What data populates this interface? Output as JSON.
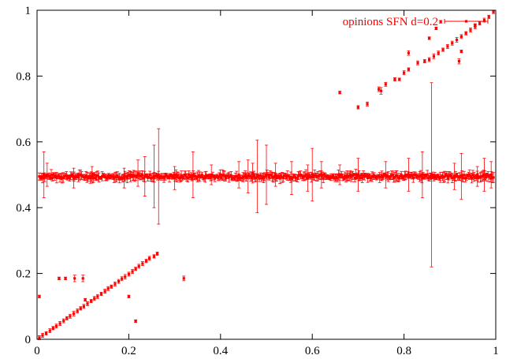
{
  "chart_data": {
    "type": "scatter",
    "title": "",
    "xlabel": "",
    "ylabel": "",
    "xlim": [
      0,
      1
    ],
    "ylim": [
      0,
      1
    ],
    "x_ticks": [
      "0",
      "0.2",
      "0.4",
      "0.6",
      "0.8",
      "1"
    ],
    "y_ticks": [
      "0",
      "0.2",
      "0.4",
      "0.6",
      "0.8",
      "1"
    ],
    "grid": false,
    "legend_position": "top-right",
    "colors": {
      "series": "#ff0000",
      "axes": "#000000",
      "background": "#ffffff"
    },
    "series": [
      {
        "name": "opinions SFN d=0.2",
        "marker": "point-with-errorbars",
        "lower_branch": [
          [
            0.005,
            0.005,
            0.006
          ],
          [
            0.012,
            0.012,
            0.006
          ],
          [
            0.02,
            0.018,
            0.005
          ],
          [
            0.028,
            0.026,
            0.006
          ],
          [
            0.035,
            0.034,
            0.005
          ],
          [
            0.042,
            0.04,
            0.006
          ],
          [
            0.05,
            0.048,
            0.006
          ],
          [
            0.058,
            0.056,
            0.006
          ],
          [
            0.065,
            0.064,
            0.005
          ],
          [
            0.072,
            0.07,
            0.006
          ],
          [
            0.08,
            0.078,
            0.007
          ],
          [
            0.088,
            0.086,
            0.006
          ],
          [
            0.095,
            0.094,
            0.005
          ],
          [
            0.102,
            0.1,
            0.006
          ],
          [
            0.11,
            0.108,
            0.006
          ],
          [
            0.118,
            0.116,
            0.005
          ],
          [
            0.125,
            0.124,
            0.006
          ],
          [
            0.132,
            0.13,
            0.006
          ],
          [
            0.14,
            0.138,
            0.005
          ],
          [
            0.148,
            0.146,
            0.006
          ],
          [
            0.155,
            0.154,
            0.006
          ],
          [
            0.162,
            0.16,
            0.005
          ],
          [
            0.17,
            0.168,
            0.006
          ],
          [
            0.178,
            0.176,
            0.006
          ],
          [
            0.185,
            0.184,
            0.006
          ],
          [
            0.192,
            0.19,
            0.007
          ],
          [
            0.2,
            0.198,
            0.006
          ],
          [
            0.208,
            0.206,
            0.006
          ],
          [
            0.215,
            0.214,
            0.005
          ],
          [
            0.222,
            0.222,
            0.006
          ],
          [
            0.23,
            0.23,
            0.006
          ],
          [
            0.238,
            0.238,
            0.005
          ],
          [
            0.245,
            0.246,
            0.006
          ],
          [
            0.255,
            0.252,
            0.005
          ],
          [
            0.262,
            0.26,
            0.005
          ]
        ],
        "lower_outliers": [
          [
            0.005,
            0.13,
            0.004
          ],
          [
            0.048,
            0.185,
            0.004
          ],
          [
            0.062,
            0.185,
            0.004
          ],
          [
            0.082,
            0.185,
            0.01
          ],
          [
            0.1,
            0.185,
            0.01
          ],
          [
            0.2,
            0.13,
            0.004
          ],
          [
            0.215,
            0.055,
            0.004
          ],
          [
            0.32,
            0.185,
            0.007
          ],
          [
            0.105,
            0.12,
            0.004
          ]
        ],
        "upper_branch": [
          [
            0.7,
            0.705,
            0.005
          ],
          [
            0.72,
            0.715,
            0.006
          ],
          [
            0.745,
            0.76,
            0.007
          ],
          [
            0.76,
            0.775,
            0.006
          ],
          [
            0.78,
            0.79,
            0.005
          ],
          [
            0.8,
            0.81,
            0.006
          ],
          [
            0.81,
            0.82,
            0.005
          ],
          [
            0.83,
            0.84,
            0.006
          ],
          [
            0.845,
            0.845,
            0.005
          ],
          [
            0.855,
            0.85,
            0.006
          ],
          [
            0.865,
            0.86,
            0.007
          ],
          [
            0.875,
            0.87,
            0.006
          ],
          [
            0.885,
            0.88,
            0.005
          ],
          [
            0.895,
            0.89,
            0.006
          ],
          [
            0.905,
            0.9,
            0.006
          ],
          [
            0.915,
            0.91,
            0.007
          ],
          [
            0.925,
            0.92,
            0.006
          ],
          [
            0.935,
            0.93,
            0.005
          ],
          [
            0.945,
            0.94,
            0.006
          ],
          [
            0.955,
            0.95,
            0.006
          ],
          [
            0.965,
            0.96,
            0.005
          ],
          [
            0.975,
            0.97,
            0.006
          ],
          [
            0.985,
            0.98,
            0.005
          ],
          [
            0.995,
            0.995,
            0.005
          ]
        ],
        "upper_outliers": [
          [
            0.66,
            0.75,
            0.004
          ],
          [
            0.75,
            0.755,
            0.01
          ],
          [
            0.79,
            0.79,
            0.004
          ],
          [
            0.81,
            0.87,
            0.007
          ],
          [
            0.855,
            0.915,
            0.004
          ],
          [
            0.87,
            0.945,
            0.004
          ],
          [
            0.88,
            0.965,
            0.004
          ],
          [
            0.92,
            0.845,
            0.008
          ],
          [
            0.925,
            0.875,
            0.004
          ],
          [
            0.955,
            0.955,
            0.004
          ]
        ],
        "middle_band": {
          "x_range": [
            0.005,
            0.995
          ],
          "y_center": 0.495,
          "large_errorbars": [
            [
              0.015,
              0.5,
              0.07
            ],
            [
              0.022,
              0.5,
              0.035
            ],
            [
              0.08,
              0.49,
              0.03
            ],
            [
              0.12,
              0.5,
              0.025
            ],
            [
              0.19,
              0.49,
              0.03
            ],
            [
              0.22,
              0.505,
              0.04
            ],
            [
              0.235,
              0.495,
              0.06
            ],
            [
              0.255,
              0.495,
              0.095
            ],
            [
              0.265,
              0.495,
              0.145
            ],
            [
              0.3,
              0.49,
              0.035
            ],
            [
              0.34,
              0.5,
              0.07
            ],
            [
              0.38,
              0.5,
              0.03
            ],
            [
              0.44,
              0.5,
              0.04
            ],
            [
              0.46,
              0.495,
              0.05
            ],
            [
              0.47,
              0.505,
              0.03
            ],
            [
              0.48,
              0.495,
              0.11
            ],
            [
              0.5,
              0.5,
              0.09
            ],
            [
              0.52,
              0.5,
              0.035
            ],
            [
              0.555,
              0.49,
              0.05
            ],
            [
              0.59,
              0.49,
              0.04
            ],
            [
              0.6,
              0.5,
              0.08
            ],
            [
              0.62,
              0.5,
              0.04
            ],
            [
              0.66,
              0.5,
              0.03
            ],
            [
              0.7,
              0.5,
              0.05
            ],
            [
              0.76,
              0.5,
              0.04
            ],
            [
              0.81,
              0.5,
              0.05
            ],
            [
              0.84,
              0.5,
              0.07
            ],
            [
              0.86,
              0.5,
              0.28
            ],
            [
              0.91,
              0.495,
              0.04
            ],
            [
              0.925,
              0.495,
              0.07
            ],
            [
              0.96,
              0.495,
              0.03
            ],
            [
              0.975,
              0.5,
              0.05
            ],
            [
              0.99,
              0.5,
              0.04
            ]
          ]
        }
      }
    ]
  }
}
